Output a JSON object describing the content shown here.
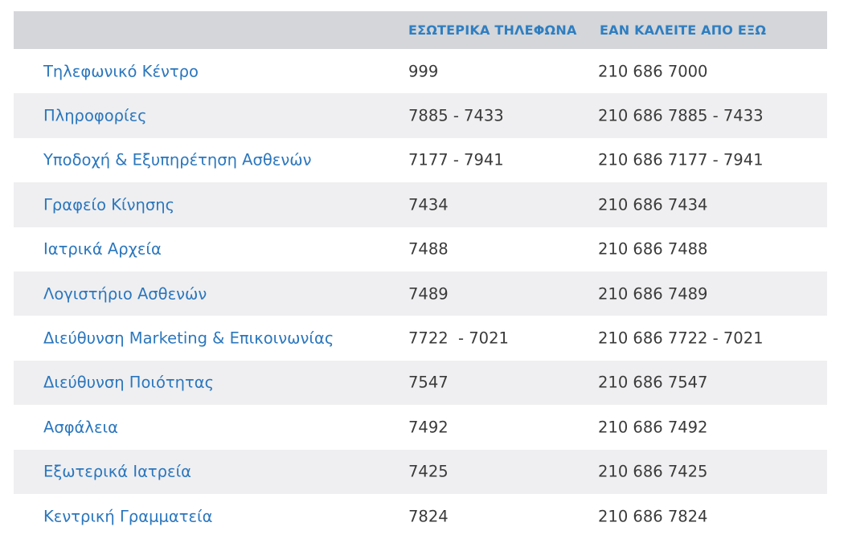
{
  "header": {
    "department": "",
    "internal": "ΕΣΩΤΕΡΙΚΑ ΤΗΛΕΦΩΝΑ",
    "external": "ΕΑΝ ΚΑΛΕΙΤΕ ΑΠΟ ΕΞΩ"
  },
  "rows": [
    {
      "department": "Τηλεφωνικό Κέντρο",
      "internal": "999",
      "external": "210 686 7000"
    },
    {
      "department": "Πληροφορίες",
      "internal": "7885 - 7433",
      "external": "210 686 7885 - 7433"
    },
    {
      "department": "Υποδοχή & Εξυπηρέτηση Ασθενών",
      "internal": "7177 - 7941",
      "external": "210 686 7177 - 7941"
    },
    {
      "department": "Γραφείο Κίνησης",
      "internal": "7434",
      "external": "210 686 7434"
    },
    {
      "department": "Ιατρικά Αρχεία",
      "internal": "7488",
      "external": "210 686 7488"
    },
    {
      "department": "Λογιστήριο Ασθενών",
      "internal": "7489",
      "external": "210 686 7489"
    },
    {
      "department": "Διεύθυνση Marketing & Επικοινωνίας",
      "internal": "7722  - 7021",
      "external": "210 686 7722 - 7021"
    },
    {
      "department": "Διεύθυνση Ποιότητας",
      "internal": "7547",
      "external": "210 686 7547"
    },
    {
      "department": "Ασφάλεια",
      "internal": "7492",
      "external": "210 686 7492"
    },
    {
      "department": "Εξωτερικά Ιατρεία",
      "internal": "7425",
      "external": "210 686 7425"
    },
    {
      "department": "Κεντρική Γραμματεία",
      "internal": "7824",
      "external": "210 686 7824"
    }
  ]
}
